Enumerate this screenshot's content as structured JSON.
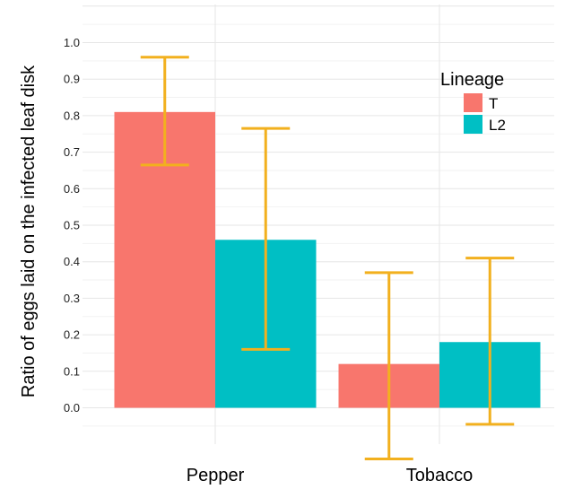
{
  "chart_data": {
    "type": "bar",
    "title": "",
    "xlabel": "",
    "ylabel": "Ratio of eggs laid on the infected leaf disk",
    "categories": [
      "Pepper",
      "Tobacco"
    ],
    "series": [
      {
        "name": "T",
        "color": "#F8766D",
        "values": [
          0.81,
          0.12
        ],
        "error_low": [
          0.665,
          -0.14
        ],
        "error_high": [
          0.96,
          0.37
        ]
      },
      {
        "name": "L2",
        "color": "#00BFC4",
        "values": [
          0.46,
          0.18
        ],
        "error_low": [
          0.16,
          -0.045
        ],
        "error_high": [
          0.765,
          0.41
        ]
      }
    ],
    "error_bar_color": "#F2B01E",
    "yticks": [
      "0.0",
      "0.1",
      "0.2",
      "0.3",
      "0.4",
      "0.5",
      "0.6",
      "0.7",
      "0.8",
      "0.9",
      "1.0"
    ],
    "ylim": [
      -0.1,
      1.1
    ],
    "grid": true,
    "legend": {
      "title": "Lineage",
      "position": "top-right"
    }
  }
}
